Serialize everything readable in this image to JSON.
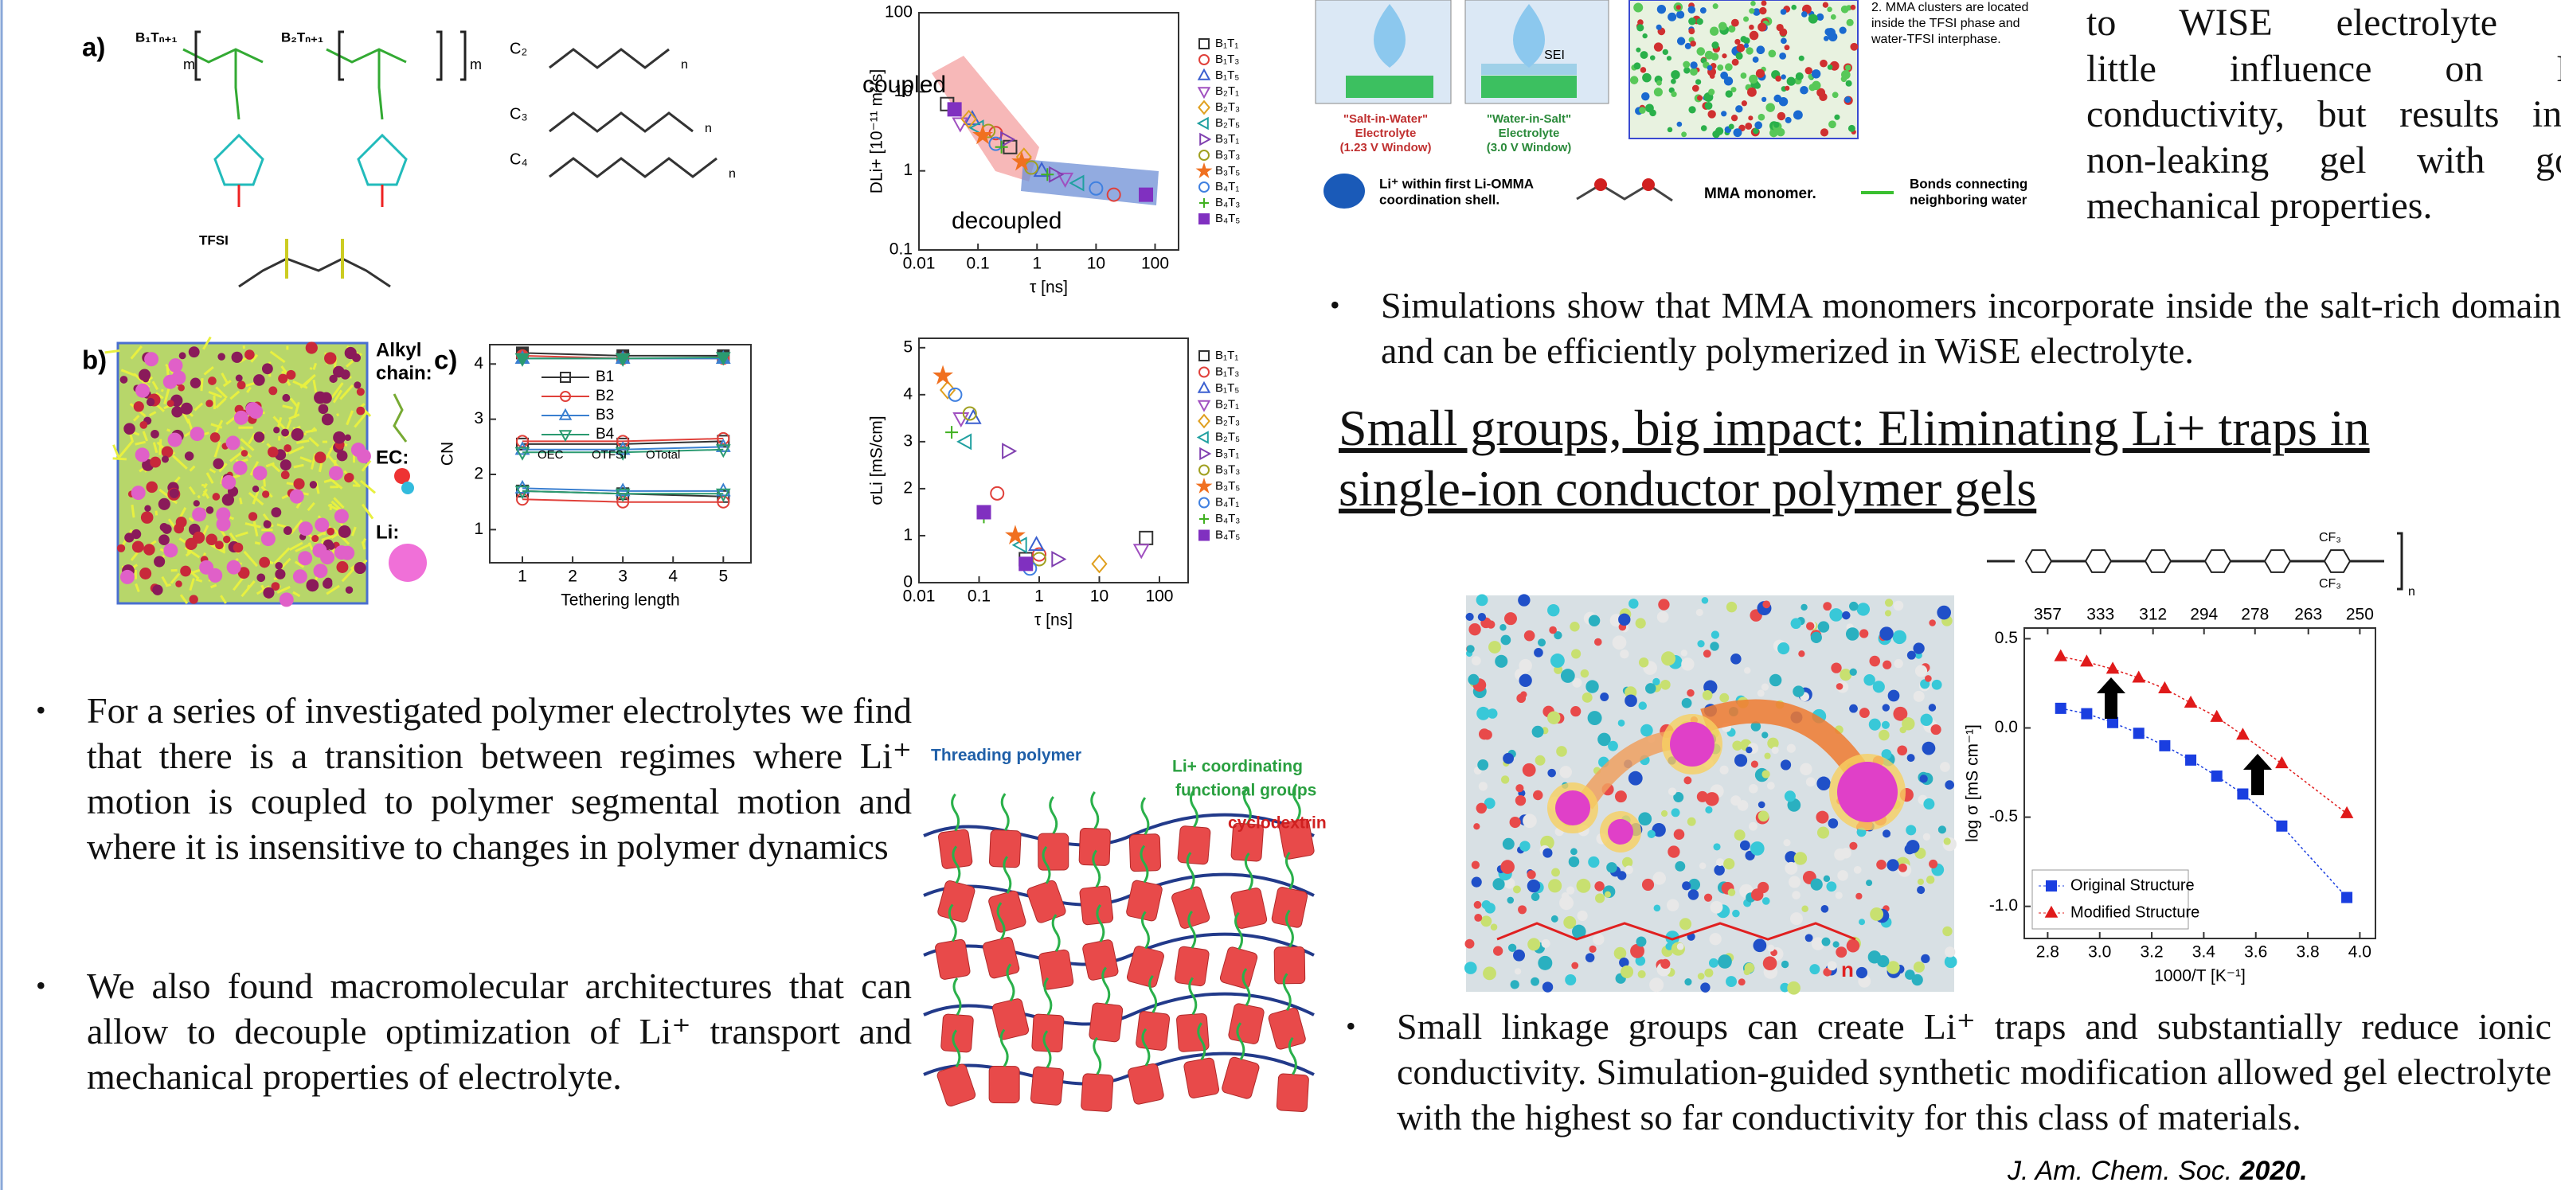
{
  "figure_labels": {
    "a": "a)",
    "b": "b)",
    "c": "c)"
  },
  "structures": {
    "b1": "B₁Tₙ₊₁",
    "b2": "B₂Tₙ₊₁",
    "m": "m",
    "n": "n",
    "c2": "C₂",
    "c3": "C₃",
    "c4": "C₄",
    "tfsi": "TFSI"
  },
  "snapshot_legend": {
    "alkyl": [
      "Alkyl",
      "chain:"
    ],
    "ec": "EC:",
    "li": "Li:"
  },
  "chart_data": [
    {
      "type": "scatter",
      "ylabel": "DLi+ [10⁻¹¹ m²/s]",
      "xlabel": "τ [ns]",
      "xscale": "log",
      "yscale": "log",
      "xlim": [
        0.01,
        250
      ],
      "ylim": [
        0.1,
        100
      ],
      "xticks": [
        0.01,
        0.1,
        1,
        10,
        100
      ],
      "yticks": [
        0.1,
        1,
        10,
        100
      ],
      "annotations": {
        "coupled": "coupled",
        "decoupled": "decoupled"
      },
      "series": [
        {
          "name": "B₁T₁",
          "color": "#333333",
          "marker": "square",
          "x": [
            0.03,
            0.35
          ],
          "values": [
            7.0,
            2.0
          ]
        },
        {
          "name": "B₁T₃",
          "color": "#e0403a",
          "marker": "circle",
          "x": [
            0.2,
            20
          ],
          "values": [
            3.0,
            0.5
          ]
        },
        {
          "name": "B₁T₅",
          "color": "#3a5fd0",
          "marker": "triangle",
          "x": [
            0.08,
            1.2
          ],
          "values": [
            4.5,
            1.0
          ]
        },
        {
          "name": "B₂T₁",
          "color": "#a050c0",
          "marker": "triangle-down",
          "x": [
            0.05,
            3
          ],
          "values": [
            4.0,
            0.8
          ]
        },
        {
          "name": "B₂T₃",
          "color": "#e0a020",
          "marker": "diamond",
          "x": [
            0.07,
            0.6
          ],
          "values": [
            4.5,
            1.5
          ]
        },
        {
          "name": "B₂T₅",
          "color": "#20a0a0",
          "marker": "triangle-left",
          "x": [
            0.1,
            5
          ],
          "values": [
            3.5,
            0.7
          ]
        },
        {
          "name": "B₃T₁",
          "color": "#8040b0",
          "marker": "triangle-right",
          "x": [
            0.3,
            2
          ],
          "values": [
            2.5,
            0.9
          ]
        },
        {
          "name": "B₃T₃",
          "color": "#a0a020",
          "marker": "circle",
          "x": [
            0.15,
            0.8
          ],
          "values": [
            3.2,
            1.1
          ]
        },
        {
          "name": "B₃T₅",
          "color": "#f07020",
          "marker": "star",
          "x": [
            0.12,
            0.55
          ],
          "values": [
            2.8,
            1.3
          ]
        },
        {
          "name": "B₄T₁",
          "color": "#4080e0",
          "marker": "circle",
          "x": [
            0.2,
            10
          ],
          "values": [
            2.2,
            0.6
          ]
        },
        {
          "name": "B₄T₃",
          "color": "#40b020",
          "marker": "plus",
          "x": [
            0.25,
            1.5
          ],
          "values": [
            2.0,
            0.9
          ]
        },
        {
          "name": "B₄T₅",
          "color": "#8030c0",
          "marker": "square-filled",
          "x": [
            0.04,
            70
          ],
          "values": [
            6.0,
            0.5
          ]
        }
      ]
    },
    {
      "type": "scatter",
      "ylabel": "σLi [mS/cm]",
      "xlabel": "τ [ns]",
      "xscale": "log",
      "xlim": [
        0.01,
        300
      ],
      "ylim": [
        0,
        5.2
      ],
      "xticks": [
        0.01,
        0.1,
        1,
        10,
        100
      ],
      "yticks": [
        0,
        1,
        2,
        3,
        4,
        5
      ],
      "series": [
        {
          "name": "B₁T₁",
          "color": "#333333",
          "marker": "square",
          "x": [
            0.6,
            60
          ],
          "values": [
            0.5,
            0.95
          ]
        },
        {
          "name": "B₁T₃",
          "color": "#e0403a",
          "marker": "circle",
          "x": [
            0.2,
            1
          ],
          "values": [
            1.9,
            0.6
          ]
        },
        {
          "name": "B₁T₅",
          "color": "#3a5fd0",
          "marker": "triangle",
          "x": [
            0.08,
            0.9
          ],
          "values": [
            3.5,
            0.8
          ]
        },
        {
          "name": "B₂T₁",
          "color": "#a050c0",
          "marker": "triangle-down",
          "x": [
            0.05,
            50
          ],
          "values": [
            3.5,
            0.7
          ]
        },
        {
          "name": "B₂T₃",
          "color": "#e0a020",
          "marker": "diamond",
          "x": [
            0.03,
            10
          ],
          "values": [
            4.1,
            0.4
          ]
        },
        {
          "name": "B₂T₅",
          "color": "#20a0a0",
          "marker": "triangle-left",
          "x": [
            0.06,
            0.5
          ],
          "values": [
            3.0,
            0.8
          ]
        },
        {
          "name": "B₃T₁",
          "color": "#8040b0",
          "marker": "triangle-right",
          "x": [
            0.3,
            2
          ],
          "values": [
            2.8,
            0.5
          ]
        },
        {
          "name": "B₃T₃",
          "color": "#a0a020",
          "marker": "circle",
          "x": [
            0.07,
            1
          ],
          "values": [
            3.6,
            0.5
          ]
        },
        {
          "name": "B₃T₅",
          "color": "#f07020",
          "marker": "star",
          "x": [
            0.025,
            0.4
          ],
          "values": [
            4.4,
            1.0
          ]
        },
        {
          "name": "B₄T₁",
          "color": "#4080e0",
          "marker": "circle",
          "x": [
            0.04,
            0.7
          ],
          "values": [
            4.0,
            0.3
          ]
        },
        {
          "name": "B₄T₃",
          "color": "#40b020",
          "marker": "plus",
          "x": [
            0.035,
            0.12
          ],
          "values": [
            3.2,
            1.4
          ]
        },
        {
          "name": "B₄T₅",
          "color": "#8030c0",
          "marker": "square-filled",
          "x": [
            0.12,
            0.6
          ],
          "values": [
            1.5,
            0.4
          ]
        }
      ]
    },
    {
      "type": "line",
      "ylabel": "CN",
      "xlabel": "Tethering length",
      "xlim": [
        0.35,
        5.55
      ],
      "ylim": [
        0.4,
        4.35
      ],
      "xticks": [
        1,
        2,
        3,
        4,
        5
      ],
      "yticks": [
        1,
        2,
        3,
        4
      ],
      "x": [
        1,
        3,
        5
      ],
      "line_legend": [
        "OEC",
        "OTFSI",
        "OTotal"
      ],
      "series": [
        {
          "name": "B1",
          "color": "#333333",
          "marker": "square",
          "o_total": [
            4.2,
            4.15,
            4.15
          ],
          "o_tfsi": [
            2.55,
            2.55,
            2.6
          ],
          "o_ec": [
            1.7,
            1.65,
            1.6
          ]
        },
        {
          "name": "B2",
          "color": "#e0403a",
          "marker": "circle",
          "o_total": [
            4.15,
            4.1,
            4.1
          ],
          "o_tfsi": [
            2.6,
            2.6,
            2.65
          ],
          "o_ec": [
            1.55,
            1.5,
            1.5
          ]
        },
        {
          "name": "B3",
          "color": "#3a7fd0",
          "marker": "triangle",
          "o_total": [
            4.1,
            4.1,
            4.1
          ],
          "o_tfsi": [
            2.45,
            2.45,
            2.5
          ],
          "o_ec": [
            1.75,
            1.7,
            1.7
          ]
        },
        {
          "name": "B4",
          "color": "#2a9a70",
          "marker": "triangle-down",
          "o_total": [
            4.1,
            4.1,
            4.12
          ],
          "o_tfsi": [
            2.4,
            2.4,
            2.45
          ],
          "o_ec": [
            1.7,
            1.65,
            1.65
          ]
        }
      ]
    },
    {
      "type": "line",
      "ylabel": "log σ [mS cm⁻¹]",
      "xlabel": "1000/T [K⁻¹]",
      "xlim": [
        2.71,
        4.06
      ],
      "ylim": [
        -1.18,
        0.56
      ],
      "xticks": [
        2.8,
        {
          "value": 3,
          "label": "3.0"
        },
        3.2,
        3.4,
        3.6,
        3.8,
        {
          "value": 4,
          "label": "4.0"
        }
      ],
      "x2ticks": [
        {
          "value": 2.8,
          "label": "357"
        },
        {
          "value": 3.003,
          "label": "333"
        },
        {
          "value": 3.205,
          "label": "312"
        },
        {
          "value": 3.401,
          "label": "294"
        },
        {
          "value": 3.597,
          "label": "278"
        },
        {
          "value": 3.802,
          "label": "263"
        },
        {
          "value": 4.0,
          "label": "250"
        }
      ],
      "yticks": [
        {
          "value": -1,
          "label": "-1.0"
        },
        -0.5,
        {
          "value": 0,
          "label": "0.0"
        },
        0.5
      ],
      "legend": "lower left",
      "x": [
        2.85,
        2.95,
        3.05,
        3.15,
        3.25,
        3.35,
        3.45,
        3.55,
        3.7,
        3.95
      ],
      "series": [
        {
          "name": "Original Structure",
          "color": "#1a3ee0",
          "marker": "square-filled",
          "values": [
            0.11,
            0.08,
            0.03,
            -0.03,
            -0.1,
            -0.18,
            -0.27,
            -0.37,
            -0.55,
            -0.95
          ]
        },
        {
          "name": "Modified Structure",
          "color": "#e01a1a",
          "marker": "triangle-filled",
          "values": [
            0.4,
            0.37,
            0.33,
            0.28,
            0.22,
            0.14,
            0.06,
            -0.04,
            -0.2,
            -0.48
          ]
        }
      ]
    }
  ],
  "cyclodextrin": {
    "threading": "Threading polymer",
    "li": [
      "Li+ coordinating",
      "functional groups"
    ],
    "cd": "cyclodextrin"
  },
  "bullets_left": [
    "For a series of investigated polymer electrolytes we find that there is a transition between regimes where Li⁺ motion is coupled to polymer segmental motion and where it is insensitive to changes in polymer dynamics",
    "We also found macromolecular architectures that can allow to decouple optimization of Li⁺ transport and mechanical properties of electrolyte."
  ],
  "wise_figure": {
    "siw": [
      "\"Salt-in-Water\"",
      "Electrolyte",
      "(1.23 V Window)"
    ],
    "wis": [
      "\"Water-in-Salt\"",
      "Electrolyte",
      "(3.0 V Window)"
    ],
    "sei": "SEI",
    "note": [
      "2.  MMA clusters are located",
      "inside the TFSI phase and",
      "water-TFSI interphase."
    ],
    "li_legend": [
      "Li⁺ within first Li-OMMA",
      "coordination shell."
    ],
    "mma": "MMA monomer.",
    "bonds": [
      "Bonds connecting",
      "neighboring water"
    ]
  },
  "wise_text": [
    "to WISE electrolyte has",
    "little influence on Li+",
    "conductivity, but results in a",
    "non-leaking gel with good",
    "mechanical properties."
  ],
  "bullet_mma": "Simulations show that MMA monomers incorporate inside the salt-rich domains and can be efficiently polymerized in WiSE electrolyte.",
  "heading": "Small groups, big impact: Eliminating Li+ traps in single-ion conductor polymer gels",
  "polymer_structure": {
    "cf3": "CF₃",
    "n": "n"
  },
  "bullet_traps": "Small linkage groups can create Li⁺ traps and substantially reduce ionic conductivity. Simulation-guided synthetic modification allowed gel electrolyte with the highest  so far conductivity for this class of materials.",
  "citation": {
    "journal": "J. Am. Chem. Soc. ",
    "year": "2020."
  }
}
